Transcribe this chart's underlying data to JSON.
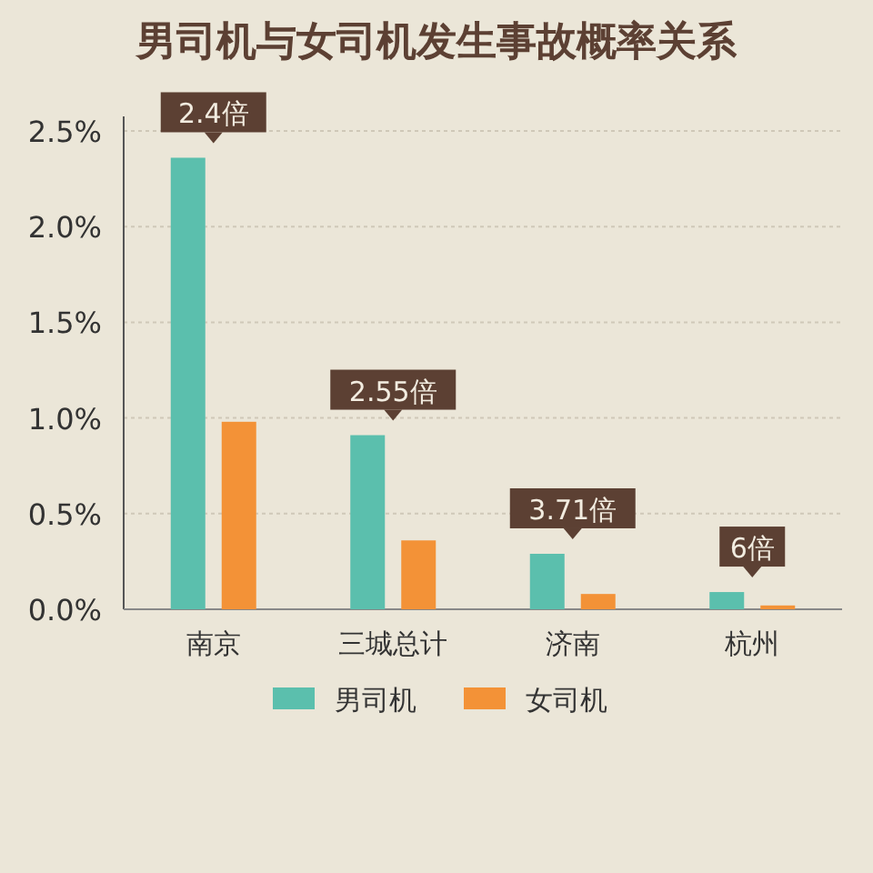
{
  "chart_data": {
    "type": "bar",
    "title": "男司机与女司机发生事故概率关系",
    "categories": [
      "南京",
      "三城总计",
      "济南",
      "杭州"
    ],
    "series": [
      {
        "name": "男司机",
        "color": "#5bbfad",
        "values": [
          2.36,
          0.91,
          0.29,
          0.09
        ]
      },
      {
        "name": "女司机",
        "color": "#f39237",
        "values": [
          0.98,
          0.36,
          0.08,
          0.02
        ]
      }
    ],
    "ylim": [
      0,
      2.5
    ],
    "yticks": [
      {
        "value": 0,
        "label": "0.0%"
      },
      {
        "value": 0.5,
        "label": "0.5%"
      },
      {
        "value": 1,
        "label": "1.0%"
      },
      {
        "value": 1.5,
        "label": "1.5%"
      },
      {
        "value": 2,
        "label": "2.0%"
      },
      {
        "value": 2.5,
        "label": "2.5%"
      }
    ],
    "grid": "y",
    "legend": "bottom",
    "annotations": [
      {
        "text": "2.4倍",
        "x": "南京",
        "y": 2.36
      },
      {
        "text": "2.55倍",
        "x": "三城总计",
        "y": 0.91
      },
      {
        "text": "3.71倍",
        "x": "济南",
        "y": 0.29
      },
      {
        "text": "6倍",
        "x": "杭州",
        "y": 0.09
      }
    ]
  }
}
